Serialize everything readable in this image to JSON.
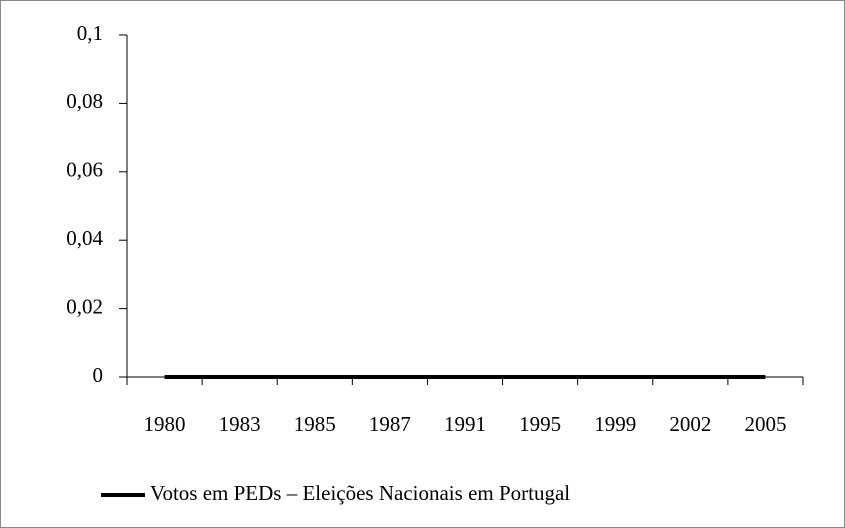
{
  "chart_data": {
    "type": "line",
    "categories": [
      "1980",
      "1983",
      "1985",
      "1987",
      "1991",
      "1995",
      "1999",
      "2002",
      "2005"
    ],
    "series": [
      {
        "name": "Votos em PEDs – Eleições Nacionais em Portugal",
        "color": "#000000",
        "values": [
          0,
          0,
          0,
          0,
          0,
          0,
          0,
          0,
          0
        ]
      }
    ],
    "ylim": [
      0,
      0.1
    ],
    "yticks": [
      0,
      {
        "value": 0.02,
        "label": "0,02"
      },
      {
        "value": 0.04,
        "label": "0,04"
      },
      {
        "value": 0.06,
        "label": "0,06"
      },
      {
        "value": 0.08,
        "label": "0,08"
      },
      {
        "value": 0.1,
        "label": "0,1"
      }
    ],
    "grid": false,
    "legend": "bottom"
  }
}
